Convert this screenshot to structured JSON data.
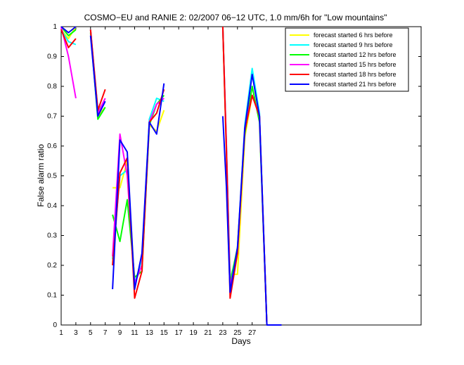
{
  "chart_data": {
    "type": "line",
    "title": "COSMO−EU and RANIE 2: 02/2007 06−12 UTC, 1.0 mm/6h for \"Low mountains\"",
    "xlabel": "Days",
    "ylabel": "False alarm ratio",
    "xlim": [
      1,
      50
    ],
    "ylim": [
      0,
      1
    ],
    "xticks": [
      1,
      3,
      5,
      7,
      9,
      11,
      13,
      15,
      17,
      19,
      21,
      23,
      25,
      27
    ],
    "yticks": [
      0,
      0.1,
      0.2,
      0.3,
      0.4,
      0.5,
      0.6,
      0.7,
      0.8,
      0.9,
      1
    ],
    "ytick_labels": [
      "0",
      "0.1",
      "0.2",
      "0.3",
      "0.4",
      "0.5",
      "0.6",
      "0.7",
      "0.8",
      "0.9",
      "1"
    ],
    "legend_position": "top-right",
    "grid": false,
    "series": [
      {
        "name": "forecast started 6 hrs before",
        "color": "#ffff00",
        "segments": [
          [
            [
              1,
              0.99
            ],
            [
              2,
              0.96
            ],
            [
              3,
              1.0
            ]
          ],
          [
            [
              5,
              0.99
            ],
            [
              6,
              0.7
            ],
            [
              7,
              0.73
            ]
          ],
          [
            [
              8,
              0.46
            ],
            [
              9,
              0.46
            ],
            [
              10,
              0.55
            ],
            [
              11,
              0.14
            ],
            [
              12,
              0.2
            ],
            [
              13,
              0.67
            ],
            [
              14,
              0.65
            ],
            [
              15,
              0.72
            ]
          ],
          [
            [
              23,
              1.0
            ],
            [
              23.5,
              0.58
            ],
            [
              24,
              0.17
            ],
            [
              25,
              0.17
            ],
            [
              26,
              0.63
            ],
            [
              27,
              0.77
            ],
            [
              28,
              0.7
            ],
            [
              29,
              0.0
            ]
          ]
        ]
      },
      {
        "name": "forecast started 9 hrs before",
        "color": "#00ffff",
        "segments": [
          [
            [
              1,
              0.99
            ],
            [
              2,
              0.95
            ],
            [
              3,
              0.94
            ]
          ],
          [
            [
              5,
              0.99
            ],
            [
              6,
              0.72
            ],
            [
              7,
              0.75
            ]
          ],
          [
            [
              8,
              0.22
            ],
            [
              9,
              0.5
            ],
            [
              10,
              0.52
            ],
            [
              11,
              0.14
            ],
            [
              12,
              0.22
            ],
            [
              13,
              0.69
            ],
            [
              14,
              0.76
            ],
            [
              15,
              0.75
            ]
          ],
          [
            [
              23,
              1.0
            ],
            [
              23.5,
              0.6
            ],
            [
              24,
              0.15
            ],
            [
              25,
              0.25
            ],
            [
              26,
              0.67
            ],
            [
              27,
              0.86
            ],
            [
              28,
              0.71
            ],
            [
              29,
              0.0
            ]
          ]
        ]
      },
      {
        "name": "forecast started 12 hrs before",
        "color": "#00ff00",
        "segments": [
          [
            [
              1,
              1.0
            ],
            [
              2,
              0.97
            ],
            [
              3,
              0.99
            ]
          ],
          [
            [
              5,
              0.98
            ],
            [
              6,
              0.69
            ],
            [
              7,
              0.73
            ]
          ],
          [
            [
              8,
              0.37
            ],
            [
              9,
              0.28
            ],
            [
              10,
              0.42
            ],
            [
              11,
              0.16
            ],
            [
              12,
              0.18
            ],
            [
              13,
              0.67
            ],
            [
              14,
              0.74
            ],
            [
              15,
              0.77
            ]
          ],
          [
            [
              23,
              1.0
            ],
            [
              23.5,
              0.59
            ],
            [
              24,
              0.14
            ],
            [
              25,
              0.26
            ],
            [
              26,
              0.64
            ],
            [
              27,
              0.8
            ],
            [
              28,
              0.68
            ],
            [
              29,
              0.0
            ]
          ]
        ]
      },
      {
        "name": "forecast started 15 hrs before",
        "color": "#ff00ff",
        "segments": [
          [
            [
              1,
              1.0
            ],
            [
              2,
              0.9
            ],
            [
              3,
              0.76
            ]
          ],
          [
            [
              5,
              0.99
            ],
            [
              6,
              0.71
            ],
            [
              7,
              0.76
            ]
          ],
          [
            [
              8,
              0.23
            ],
            [
              9,
              0.64
            ],
            [
              10,
              0.5
            ],
            [
              11,
              0.14
            ],
            [
              12,
              0.2
            ],
            [
              13,
              0.68
            ],
            [
              14,
              0.74
            ],
            [
              15,
              0.76
            ]
          ],
          [
            [
              23,
              1.0
            ],
            [
              23.5,
              0.6
            ],
            [
              24,
              0.13
            ],
            [
              25,
              0.24
            ],
            [
              26,
              0.66
            ],
            [
              27,
              0.77
            ],
            [
              28,
              0.7
            ],
            [
              29,
              0.0
            ]
          ]
        ]
      },
      {
        "name": "forecast started 18 hrs before",
        "color": "#ff0000",
        "segments": [
          [
            [
              1,
              0.99
            ],
            [
              2,
              0.93
            ],
            [
              3,
              0.96
            ]
          ],
          [
            [
              5,
              0.99
            ],
            [
              6,
              0.72
            ],
            [
              7,
              0.79
            ]
          ],
          [
            [
              8,
              0.2
            ],
            [
              9,
              0.51
            ],
            [
              10,
              0.56
            ],
            [
              11,
              0.09
            ],
            [
              12,
              0.18
            ],
            [
              13,
              0.68
            ],
            [
              14,
              0.71
            ],
            [
              15,
              0.79
            ]
          ],
          [
            [
              23,
              1.0
            ],
            [
              23.5,
              0.58
            ],
            [
              24,
              0.09
            ],
            [
              25,
              0.24
            ],
            [
              26,
              0.65
            ],
            [
              27,
              0.77
            ],
            [
              28,
              0.7
            ],
            [
              29,
              0.0
            ]
          ]
        ]
      },
      {
        "name": "forecast started 21 hrs before",
        "color": "#0000ff",
        "segments": [
          [
            [
              1,
              1.0
            ],
            [
              2,
              0.98
            ],
            [
              3,
              1.0
            ]
          ],
          [
            [
              5,
              0.97
            ],
            [
              6,
              0.7
            ],
            [
              7,
              0.75
            ]
          ],
          [
            [
              8,
              0.12
            ],
            [
              9,
              0.62
            ],
            [
              10,
              0.58
            ],
            [
              11,
              0.12
            ],
            [
              12,
              0.24
            ],
            [
              13,
              0.68
            ],
            [
              14,
              0.64
            ],
            [
              15,
              0.81
            ]
          ],
          [
            [
              23,
              0.7
            ],
            [
              23.5,
              0.46
            ],
            [
              24,
              0.11
            ],
            [
              25,
              0.26
            ],
            [
              26,
              0.66
            ],
            [
              27,
              0.84
            ],
            [
              28,
              0.7
            ],
            [
              29,
              0.0
            ],
            [
              31,
              0.0
            ]
          ]
        ]
      }
    ]
  }
}
